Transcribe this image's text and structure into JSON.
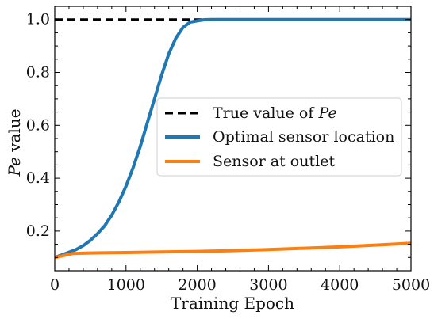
{
  "chart_data": {
    "type": "line",
    "xlabel": "Training Epoch",
    "ylabel_math": "Pe",
    "ylabel_suffix": " value",
    "xlim": [
      0,
      5000
    ],
    "ylim": [
      0.05,
      1.05
    ],
    "xticks": [
      0,
      1000,
      2000,
      3000,
      4000,
      5000
    ],
    "yticks": [
      0.2,
      0.4,
      0.6,
      0.8,
      1.0
    ],
    "grid": false,
    "legend_position": "center-right",
    "legend_math": "Pe",
    "series": [
      {
        "name": "True value of",
        "color": "#000000",
        "style": "dashed",
        "x": [
          0,
          5000
        ],
        "y": [
          1.0,
          1.0
        ]
      },
      {
        "name": "Optimal sensor location",
        "color": "#1f77b4",
        "style": "solid",
        "x": [
          0,
          100,
          200,
          300,
          400,
          500,
          600,
          700,
          800,
          900,
          1000,
          1100,
          1200,
          1300,
          1400,
          1500,
          1600,
          1700,
          1800,
          1900,
          2000,
          2100,
          2200,
          2400,
          2600,
          3000,
          3500,
          4000,
          4500,
          5000
        ],
        "y": [
          0.1,
          0.11,
          0.12,
          0.13,
          0.145,
          0.165,
          0.19,
          0.22,
          0.26,
          0.31,
          0.37,
          0.44,
          0.52,
          0.61,
          0.7,
          0.79,
          0.87,
          0.93,
          0.97,
          0.99,
          0.995,
          0.999,
          1.0,
          1.0,
          1.0,
          1.0,
          1.0,
          1.0,
          1.0,
          1.0
        ]
      },
      {
        "name": "Sensor at outlet",
        "color": "#ff7f0e",
        "style": "solid",
        "x": [
          0,
          250,
          500,
          1000,
          1500,
          2000,
          2500,
          3000,
          3500,
          4000,
          4500,
          5000
        ],
        "y": [
          0.1,
          0.115,
          0.117,
          0.119,
          0.121,
          0.123,
          0.126,
          0.13,
          0.135,
          0.14,
          0.147,
          0.154
        ]
      }
    ]
  }
}
